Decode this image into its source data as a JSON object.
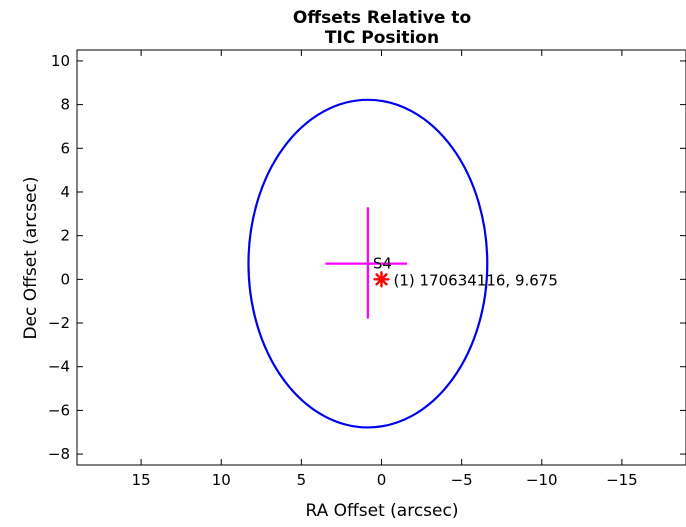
{
  "chart_data": {
    "type": "scatter",
    "title": [
      "Offsets Relative to",
      "TIC Position"
    ],
    "xlabel": "RA Offset (arcsec)",
    "ylabel": "Dec Offset (arcsec)",
    "xlim": [
      19,
      -19
    ],
    "ylim": [
      -8.5,
      10.5
    ],
    "x_reversed": true,
    "grid": false,
    "xticks": [
      15,
      10,
      5,
      0,
      -5,
      -10,
      -15
    ],
    "xtick_labels": [
      "15",
      "10",
      "5",
      "0",
      "−5",
      "−10",
      "−15"
    ],
    "yticks": [
      10,
      8,
      6,
      4,
      2,
      0,
      -2,
      -4,
      -6,
      -8
    ],
    "ytick_labels": [
      "10",
      "8",
      "6",
      "4",
      "2",
      "0",
      "−2",
      "−4",
      "−6",
      "−8"
    ],
    "ellipse": {
      "center": [
        0.85,
        0.72
      ],
      "semi_x": 7.45,
      "semi_y": 7.5,
      "color": "#0000ee"
    },
    "crosshair": {
      "center": [
        0.85,
        0.72
      ],
      "x_range": [
        3.5,
        -1.6
      ],
      "y_range": [
        -1.8,
        3.3
      ],
      "label": "S4",
      "color": "#ff00ff"
    },
    "target": {
      "x": 0,
      "y": 0,
      "marker": "asterisk",
      "color": "#ff0000",
      "label": "(1) 170634116, 9.675"
    }
  }
}
